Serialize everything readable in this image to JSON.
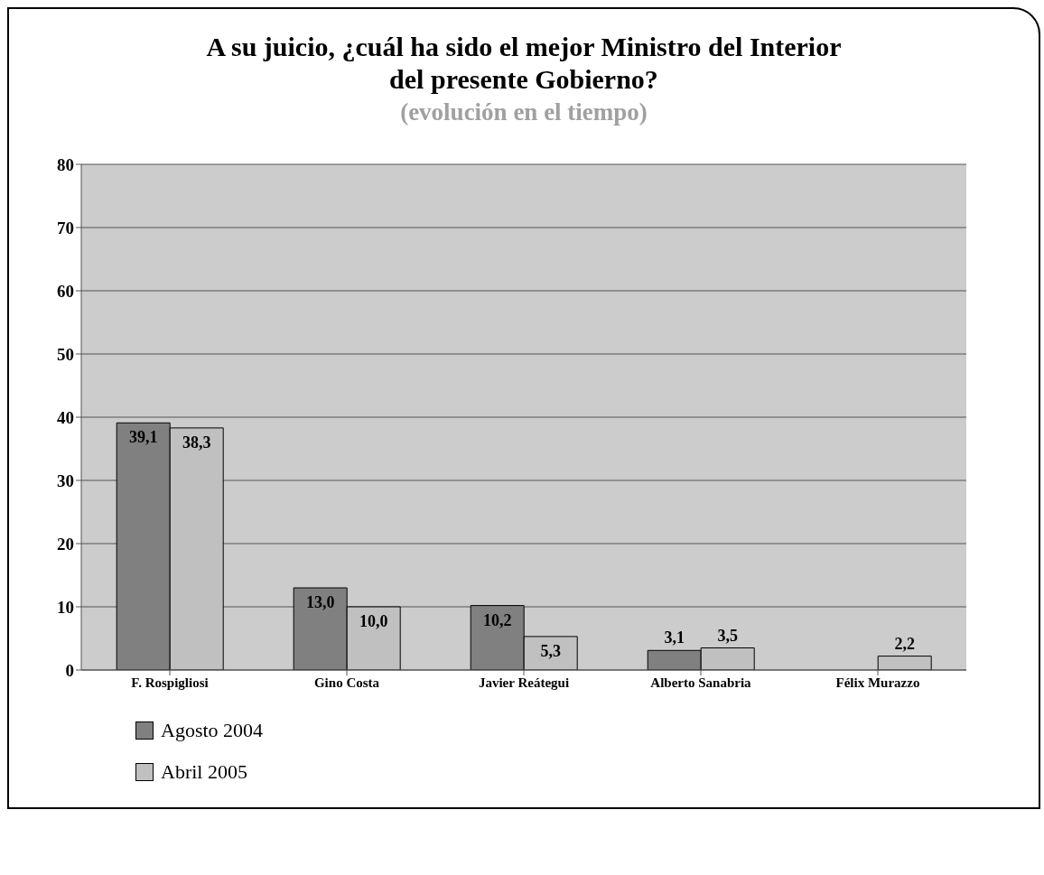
{
  "chart_data": {
    "type": "bar",
    "title": "A su juicio, ¿cuál ha sido el mejor Ministro del Interior del presente Gobierno?",
    "subtitle": "(evolución en el tiempo)",
    "categories": [
      "F. Rospigliosi",
      "Gino Costa",
      "Javier Reátegui",
      "Alberto Sanabria",
      "Félix Murazzo"
    ],
    "series": [
      {
        "name": "Agosto 2004",
        "color": "#808080",
        "values": [
          39.1,
          13.0,
          10.2,
          3.1,
          null
        ],
        "value_labels": [
          "39,1",
          "13,0",
          "10,2",
          "3,1",
          null
        ]
      },
      {
        "name": "Abril 2005",
        "color": "#c0c0c0",
        "values": [
          38.3,
          10.0,
          5.3,
          3.5,
          2.2
        ],
        "value_labels": [
          "38,3",
          "10,0",
          "5,3",
          "3,5",
          "2,2"
        ]
      }
    ],
    "ylim": [
      0,
      80
    ],
    "yticks": [
      0,
      10,
      20,
      30,
      40,
      50,
      60,
      70,
      80
    ],
    "grid": "y",
    "legend": "bottom left"
  }
}
